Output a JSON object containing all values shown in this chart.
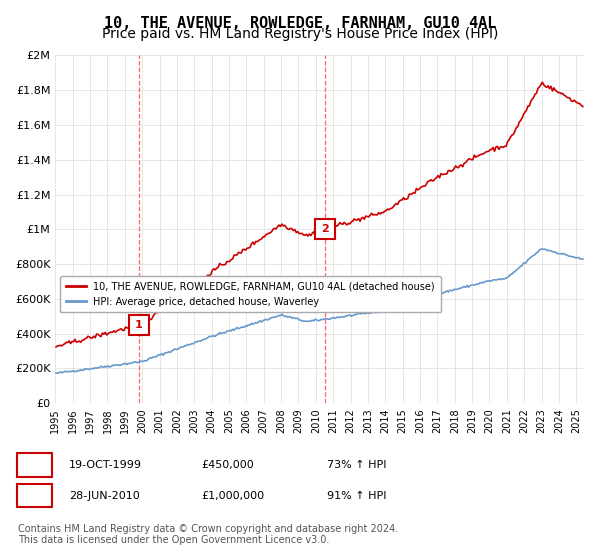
{
  "title": "10, THE AVENUE, ROWLEDGE, FARNHAM, GU10 4AL",
  "subtitle": "Price paid vs. HM Land Registry's House Price Index (HPI)",
  "title_fontsize": 11,
  "subtitle_fontsize": 10,
  "ylim": [
    0,
    2000000
  ],
  "yticks": [
    0,
    200000,
    400000,
    600000,
    800000,
    1000000,
    1200000,
    1400000,
    1600000,
    1800000,
    2000000
  ],
  "ytick_labels": [
    "£0",
    "£200K",
    "£400K",
    "£600K",
    "£800K",
    "£1M",
    "£1.2M",
    "£1.4M",
    "£1.6M",
    "£1.8M",
    "£2M"
  ],
  "xlim_start": 1995.0,
  "xlim_end": 2025.5,
  "sale1_x": 1999.8,
  "sale1_y": 450000,
  "sale1_label": "1",
  "sale1_date": "19-OCT-1999",
  "sale1_price": "£450,000",
  "sale1_hpi": "73% ↑ HPI",
  "sale2_x": 2010.5,
  "sale2_y": 1000000,
  "sale2_label": "2",
  "sale2_date": "28-JUN-2010",
  "sale2_price": "£1,000,000",
  "sale2_hpi": "91% ↑ HPI",
  "line_red_color": "#cc0000",
  "line_blue_color": "#6699cc",
  "marker_color": "#cc0000",
  "vline_color": "#ff6666",
  "background_color": "#ffffff",
  "grid_color": "#dddddd",
  "legend_line1": "10, THE AVENUE, ROWLEDGE, FARNHAM, GU10 4AL (detached house)",
  "legend_line2": "HPI: Average price, detached house, Waverley",
  "footnote": "Contains HM Land Registry data © Crown copyright and database right 2024.\nThis data is licensed under the Open Government Licence v3.0.",
  "footnote_fontsize": 7
}
